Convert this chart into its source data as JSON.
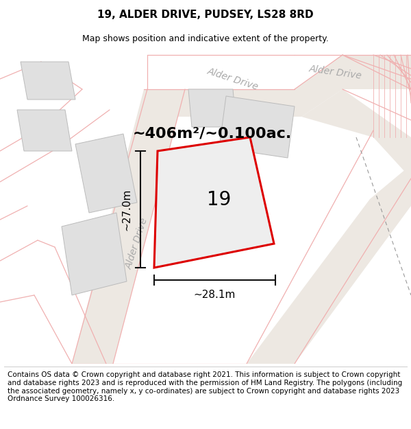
{
  "title_line1": "19, ALDER DRIVE, PUDSEY, LS28 8RD",
  "title_line2": "Map shows position and indicative extent of the property.",
  "footer_lines": [
    "Contains OS data © Crown copyright and database right 2021. This information is subject to Crown copyright and database rights 2023 and is reproduced with the permission of",
    "HM Land Registry. The polygons (including the associated geometry, namely x, y co-ordinates) are subject to Crown copyright and database rights 2023 Ordnance Survey",
    "100026316."
  ],
  "area_label": "~406m²/~0.100ac.",
  "width_label": "~28.1m",
  "height_label": "~27.0m",
  "plot_number": "19",
  "map_bg": "#f7f6f4",
  "road_line_color": "#f0b0b0",
  "road_fill_color": "#ede8e2",
  "building_face": "#e0e0e0",
  "building_edge": "#bbbbbb",
  "plot_fill": "#eeeeee",
  "plot_edge": "#dd0000",
  "road_label_color": "#aaaaaa",
  "dim_line_color": "#111111",
  "title_fontsize": 11,
  "subtitle_fontsize": 9,
  "footer_fontsize": 7.5,
  "area_fontsize": 16,
  "plot_num_fontsize": 20,
  "dim_fontsize": 11,
  "road_label_fontsize": 10
}
